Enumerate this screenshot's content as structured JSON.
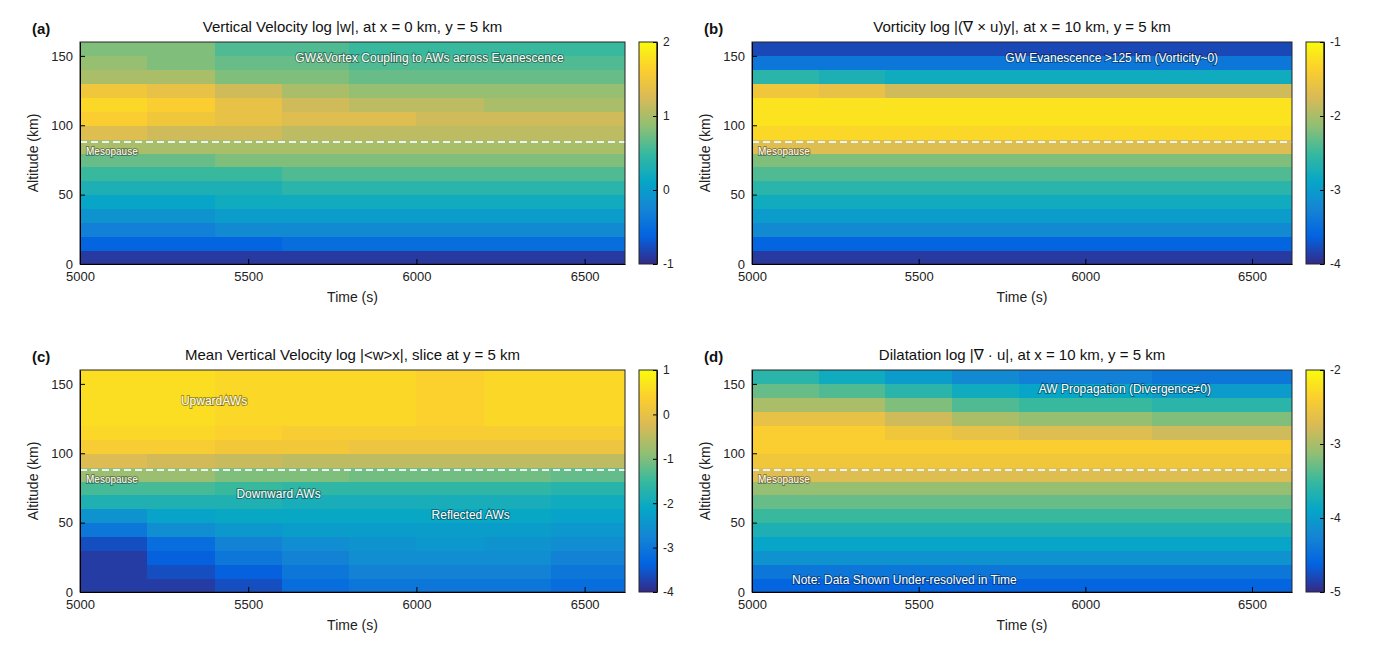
{
  "chart_data": [
    {
      "type": "heatmap",
      "title": "Vertical Velocity log |w|, at x = 0 km, y = 5 km",
      "panel_label": "(a)",
      "x_label": "Time (s)",
      "y_label": "Altitude (km)",
      "xlim": [
        5000,
        6620
      ],
      "xticks": [
        5000,
        5500,
        6000,
        6500
      ],
      "ylim": [
        0,
        160
      ],
      "yticks": [
        0,
        50,
        100,
        150
      ],
      "grid": false,
      "color": "parula",
      "x_edges": [
        5000,
        5200,
        5400,
        5600,
        5800,
        6000,
        6200,
        6400,
        6620
      ],
      "y_edges": [
        0,
        10,
        20,
        30,
        40,
        50,
        60,
        70,
        80,
        90,
        100,
        110,
        120,
        130,
        140,
        150,
        160
      ],
      "values": [
        [
          -0.9,
          -0.9,
          -0.9,
          -0.9,
          -0.9,
          -0.9,
          -0.9,
          -0.9
        ],
        [
          -0.6,
          -0.6,
          -0.6,
          -0.5,
          -0.5,
          -0.5,
          -0.5,
          -0.5
        ],
        [
          -0.3,
          -0.3,
          -0.2,
          -0.2,
          -0.2,
          -0.2,
          -0.2,
          -0.2
        ],
        [
          -0.1,
          -0.1,
          0.0,
          0.0,
          0.0,
          0.0,
          0.0,
          0.0
        ],
        [
          0.1,
          0.1,
          0.2,
          0.2,
          0.2,
          0.2,
          0.2,
          0.2
        ],
        [
          0.3,
          0.3,
          0.3,
          0.4,
          0.4,
          0.4,
          0.4,
          0.4
        ],
        [
          0.5,
          0.5,
          0.5,
          0.6,
          0.6,
          0.6,
          0.6,
          0.6
        ],
        [
          0.7,
          0.7,
          0.8,
          0.8,
          0.8,
          0.8,
          0.8,
          0.8
        ],
        [
          1.0,
          1.0,
          1.0,
          1.0,
          1.0,
          1.0,
          1.0,
          1.0
        ],
        [
          1.3,
          1.2,
          1.2,
          1.1,
          1.1,
          1.1,
          1.1,
          1.1
        ],
        [
          1.6,
          1.5,
          1.4,
          1.3,
          1.3,
          1.2,
          1.2,
          1.2
        ],
        [
          1.7,
          1.6,
          1.4,
          1.2,
          1.1,
          1.1,
          1.0,
          1.0
        ],
        [
          1.5,
          1.4,
          1.2,
          1.0,
          0.9,
          0.9,
          0.9,
          0.9
        ],
        [
          1.0,
          1.0,
          0.8,
          0.8,
          0.7,
          0.7,
          0.7,
          0.7
        ],
        [
          0.9,
          0.8,
          0.7,
          0.7,
          0.6,
          0.6,
          0.6,
          0.6
        ],
        [
          0.8,
          0.8,
          0.6,
          0.6,
          0.5,
          0.5,
          0.5,
          0.5
        ]
      ],
      "colorbar": {
        "range": [
          -1,
          2
        ],
        "ticks": [
          -1,
          0,
          1,
          2
        ]
      },
      "hline": {
        "value": 88,
        "label": "Mesopause"
      },
      "annotations": [
        {
          "text": "GW&Vortex Coupling to AWs across Evanescence",
          "x": 5640,
          "y": 148
        }
      ]
    },
    {
      "type": "heatmap",
      "title": "Vorticity log |(∇ × u)y|, at x = 10 km, y = 5 km",
      "panel_label": "(b)",
      "x_label": "Time (s)",
      "y_label": "Altitude (km)",
      "xlim": [
        5000,
        6620
      ],
      "xticks": [
        5000,
        5500,
        6000,
        6500
      ],
      "ylim": [
        0,
        160
      ],
      "yticks": [
        0,
        50,
        100,
        150
      ],
      "grid": false,
      "color": "parula",
      "x_edges": [
        5000,
        5200,
        5400,
        5600,
        5800,
        6000,
        6200,
        6400,
        6620
      ],
      "y_edges": [
        0,
        10,
        20,
        30,
        40,
        50,
        60,
        70,
        80,
        90,
        100,
        110,
        120,
        130,
        140,
        150,
        160
      ],
      "values": [
        [
          -3.9,
          -3.9,
          -3.9,
          -3.9,
          -3.9,
          -3.9,
          -3.9,
          -3.9
        ],
        [
          -3.6,
          -3.6,
          -3.6,
          -3.6,
          -3.6,
          -3.6,
          -3.6,
          -3.6
        ],
        [
          -3.2,
          -3.2,
          -3.2,
          -3.2,
          -3.2,
          -3.2,
          -3.2,
          -3.2
        ],
        [
          -3.0,
          -3.0,
          -3.0,
          -3.0,
          -3.0,
          -3.0,
          -3.0,
          -3.0
        ],
        [
          -2.8,
          -2.8,
          -2.8,
          -2.8,
          -2.8,
          -2.8,
          -2.8,
          -2.8
        ],
        [
          -2.6,
          -2.6,
          -2.6,
          -2.6,
          -2.6,
          -2.6,
          -2.6,
          -2.6
        ],
        [
          -2.4,
          -2.4,
          -2.4,
          -2.4,
          -2.4,
          -2.4,
          -2.4,
          -2.4
        ],
        [
          -2.2,
          -2.2,
          -2.2,
          -2.2,
          -2.2,
          -2.2,
          -2.2,
          -2.2
        ],
        [
          -1.7,
          -1.7,
          -1.7,
          -1.7,
          -1.7,
          -1.7,
          -1.7,
          -1.7
        ],
        [
          -1.3,
          -1.3,
          -1.3,
          -1.3,
          -1.3,
          -1.3,
          -1.3,
          -1.3
        ],
        [
          -1.2,
          -1.2,
          -1.2,
          -1.2,
          -1.2,
          -1.2,
          -1.2,
          -1.2
        ],
        [
          -1.2,
          -1.2,
          -1.2,
          -1.2,
          -1.2,
          -1.2,
          -1.2,
          -1.2
        ],
        [
          -1.5,
          -1.6,
          -1.8,
          -1.8,
          -1.8,
          -1.8,
          -1.8,
          -1.8
        ],
        [
          -2.6,
          -2.7,
          -2.8,
          -2.8,
          -2.8,
          -2.8,
          -2.8,
          -2.8
        ],
        [
          -3.4,
          -3.4,
          -3.4,
          -3.4,
          -3.4,
          -3.4,
          -3.4,
          -3.4
        ],
        [
          -3.8,
          -3.8,
          -3.8,
          -3.8,
          -3.8,
          -3.8,
          -3.8,
          -3.8
        ]
      ],
      "colorbar": {
        "range": [
          -4,
          -1
        ],
        "ticks": [
          -4,
          -3,
          -2,
          -1
        ]
      },
      "hline": {
        "value": 88,
        "label": "Mesopause"
      },
      "annotations": [
        {
          "text": "GW Evanescence >125 km (Vorticity~0)",
          "x": 5760,
          "y": 148
        }
      ]
    },
    {
      "type": "heatmap",
      "title": "Mean Vertical Velocity log |<w>x|, slice at y = 5 km",
      "panel_label": "(c)",
      "x_label": "Time (s)",
      "y_label": "Altitude (km)",
      "xlim": [
        5000,
        6620
      ],
      "xticks": [
        5000,
        5500,
        6000,
        6500
      ],
      "ylim": [
        0,
        160
      ],
      "yticks": [
        0,
        50,
        100,
        150
      ],
      "grid": false,
      "color": "parula",
      "x_edges": [
        5000,
        5200,
        5400,
        5600,
        5800,
        6000,
        6200,
        6400,
        6620
      ],
      "y_edges": [
        0,
        10,
        20,
        30,
        40,
        50,
        60,
        70,
        80,
        90,
        100,
        110,
        120,
        130,
        140,
        150,
        160
      ],
      "values": [
        [
          -3.8,
          -3.8,
          -3.6,
          -3.2,
          -3.0,
          -3.0,
          -3.0,
          -3.2
        ],
        [
          -3.8,
          -3.6,
          -3.4,
          -3.0,
          -2.8,
          -2.8,
          -2.8,
          -3.0
        ],
        [
          -3.8,
          -3.4,
          -3.0,
          -2.8,
          -2.6,
          -2.6,
          -2.6,
          -2.8
        ],
        [
          -3.6,
          -3.2,
          -2.8,
          -2.6,
          -2.5,
          -2.4,
          -2.5,
          -2.6
        ],
        [
          -3.0,
          -2.6,
          -2.4,
          -2.3,
          -2.3,
          -2.3,
          -2.3,
          -2.4
        ],
        [
          -2.5,
          -2.2,
          -2.1,
          -2.1,
          -2.1,
          -2.1,
          -2.1,
          -2.2
        ],
        [
          -1.8,
          -1.8,
          -1.8,
          -1.9,
          -1.9,
          -1.9,
          -1.9,
          -2.0
        ],
        [
          -1.4,
          -1.4,
          -1.5,
          -1.6,
          -1.6,
          -1.6,
          -1.6,
          -1.7
        ],
        [
          -0.8,
          -0.8,
          -1.0,
          -1.0,
          -1.1,
          -1.1,
          -1.1,
          -1.2
        ],
        [
          -0.2,
          -0.3,
          -0.4,
          -0.5,
          -0.5,
          -0.5,
          -0.5,
          -0.5
        ],
        [
          0.3,
          0.3,
          0.2,
          0.2,
          0.1,
          0.1,
          0.1,
          0.1
        ],
        [
          0.5,
          0.5,
          0.4,
          0.3,
          0.3,
          0.3,
          0.3,
          0.3
        ],
        [
          0.6,
          0.6,
          0.5,
          0.5,
          0.5,
          0.4,
          0.5,
          0.5
        ],
        [
          0.6,
          0.6,
          0.5,
          0.5,
          0.5,
          0.4,
          0.5,
          0.5
        ],
        [
          0.6,
          0.6,
          0.5,
          0.5,
          0.5,
          0.4,
          0.5,
          0.5
        ],
        [
          0.6,
          0.6,
          0.5,
          0.5,
          0.5,
          0.4,
          0.5,
          0.5
        ]
      ],
      "colorbar": {
        "range": [
          -4,
          1
        ],
        "ticks": [
          -4,
          -3,
          -2,
          -1,
          0,
          1
        ]
      },
      "hline": {
        "value": 88,
        "label": "Mesopause"
      },
      "annotations": [
        {
          "text": "UpwardAWs",
          "x": 5300,
          "y": 137
        },
        {
          "text": "Downward AWs",
          "x": 5465,
          "y": 70
        },
        {
          "text": "Reflected AWs",
          "x": 6045,
          "y": 55
        }
      ]
    },
    {
      "type": "heatmap",
      "title": "Dilatation log |∇ · u|, at x = 10 km, y = 5 km",
      "panel_label": "(d)",
      "x_label": "Time (s)",
      "y_label": "Altitude (km)",
      "xlim": [
        5000,
        6620
      ],
      "xticks": [
        5000,
        5500,
        6000,
        6500
      ],
      "ylim": [
        0,
        160
      ],
      "yticks": [
        0,
        50,
        100,
        150
      ],
      "grid": false,
      "color": "parula",
      "x_edges": [
        5000,
        5200,
        5400,
        5600,
        5800,
        6000,
        6200,
        6400,
        6620
      ],
      "y_edges": [
        0,
        10,
        20,
        30,
        40,
        50,
        60,
        70,
        80,
        90,
        100,
        110,
        120,
        130,
        140,
        150,
        160
      ],
      "values": [
        [
          -4.6,
          -4.6,
          -4.6,
          -4.6,
          -4.6,
          -4.6,
          -4.6,
          -4.6
        ],
        [
          -4.4,
          -4.4,
          -4.4,
          -4.4,
          -4.4,
          -4.4,
          -4.4,
          -4.4
        ],
        [
          -4.1,
          -4.1,
          -4.1,
          -4.1,
          -4.1,
          -4.1,
          -4.1,
          -4.1
        ],
        [
          -3.9,
          -3.9,
          -3.9,
          -3.9,
          -3.9,
          -3.9,
          -3.9,
          -3.9
        ],
        [
          -3.7,
          -3.7,
          -3.7,
          -3.7,
          -3.7,
          -3.7,
          -3.7,
          -3.7
        ],
        [
          -3.5,
          -3.5,
          -3.5,
          -3.5,
          -3.5,
          -3.5,
          -3.5,
          -3.5
        ],
        [
          -3.3,
          -3.3,
          -3.3,
          -3.3,
          -3.3,
          -3.3,
          -3.3,
          -3.3
        ],
        [
          -3.1,
          -3.1,
          -3.1,
          -3.1,
          -3.1,
          -3.1,
          -3.1,
          -3.1
        ],
        [
          -2.7,
          -2.7,
          -2.7,
          -2.7,
          -2.7,
          -2.7,
          -2.7,
          -2.7
        ],
        [
          -2.5,
          -2.5,
          -2.5,
          -2.5,
          -2.5,
          -2.5,
          -2.5,
          -2.5
        ],
        [
          -2.4,
          -2.4,
          -2.4,
          -2.4,
          -2.4,
          -2.4,
          -2.4,
          -2.4
        ],
        [
          -2.4,
          -2.4,
          -2.5,
          -2.6,
          -2.7,
          -2.7,
          -2.8,
          -2.8
        ],
        [
          -2.6,
          -2.6,
          -2.8,
          -3.0,
          -3.1,
          -3.1,
          -3.2,
          -3.2
        ],
        [
          -3.0,
          -3.0,
          -3.2,
          -3.4,
          -3.5,
          -3.5,
          -3.6,
          -3.6
        ],
        [
          -3.3,
          -3.4,
          -3.6,
          -3.8,
          -3.9,
          -3.9,
          -4.0,
          -4.0
        ],
        [
          -3.6,
          -3.8,
          -4.0,
          -4.2,
          -4.3,
          -4.3,
          -4.4,
          -4.4
        ]
      ],
      "colorbar": {
        "range": [
          -5,
          -2
        ],
        "ticks": [
          -5,
          -4,
          -3,
          -2
        ]
      },
      "hline": {
        "value": 88,
        "label": "Mesopause"
      },
      "annotations": [
        {
          "text": "AW Propagation (Divergence≠0)",
          "x": 5860,
          "y": 146
        },
        {
          "text": "Note: Data Shown Under-resolved in Time",
          "x": 5120,
          "y": 8
        }
      ]
    }
  ]
}
